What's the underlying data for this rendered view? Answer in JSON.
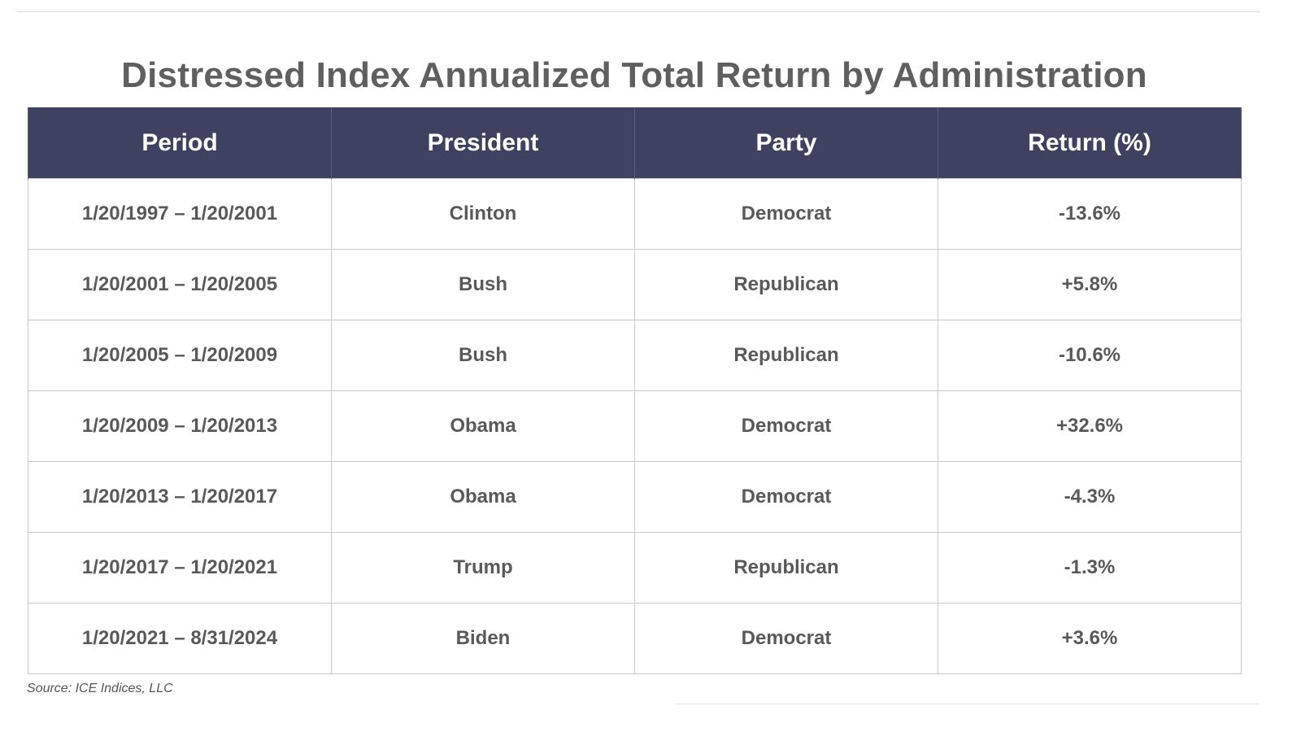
{
  "chart_data": {
    "type": "table",
    "title": "Distressed Index Annualized Total Return by Administration",
    "columns": [
      "Period",
      "President",
      "Party",
      "Return (%)"
    ],
    "rows": [
      [
        "1/20/1997 – 1/20/2001",
        "Clinton",
        "Democrat",
        "-13.6%"
      ],
      [
        "1/20/2001 – 1/20/2005",
        "Bush",
        "Republican",
        "+5.8%"
      ],
      [
        "1/20/2005 – 1/20/2009",
        "Bush",
        "Republican",
        "-10.6%"
      ],
      [
        "1/20/2009 – 1/20/2013",
        "Obama",
        "Democrat",
        "+32.6%"
      ],
      [
        "1/20/2013 – 1/20/2017",
        "Obama",
        "Democrat",
        "-4.3%"
      ],
      [
        "1/20/2017 – 1/20/2021",
        "Trump",
        "Republican",
        "-1.3%"
      ],
      [
        "1/20/2021 – 8/31/2024",
        "Biden",
        "Democrat",
        "+3.6%"
      ]
    ],
    "values": [
      -13.6,
      5.8,
      -10.6,
      32.6,
      -4.3,
      -1.3,
      3.6
    ]
  },
  "source": "Source: ICE Indices, LLC",
  "colors": {
    "header_background": "#3e4260",
    "header_text": "#ffffff",
    "body_text": "#595959",
    "title_text": "#5f5f5f",
    "grid": "#c8c8c8"
  }
}
